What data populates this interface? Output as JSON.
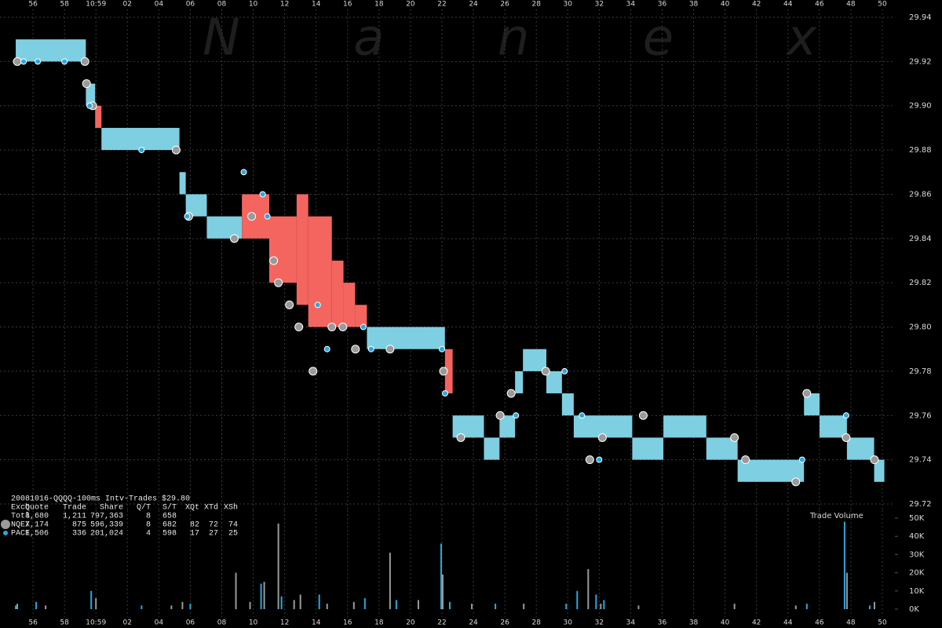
{
  "chart_data": [
    {
      "type": "nbbo",
      "title": "20081016-QQQQ-100ms Intv-Trades $29.80",
      "watermark": "N a n e x",
      "xlim": [
        53.9,
        110.8
      ],
      "xticks": [
        56,
        58,
        {
          "value": 60,
          "label": "10:59"
        },
        {
          "value": 62,
          "label": "02"
        },
        {
          "value": 64,
          "label": "04"
        },
        {
          "value": 66,
          "label": "06"
        },
        {
          "value": 68,
          "label": "08"
        },
        {
          "value": 70,
          "label": "10"
        },
        {
          "value": 72,
          "label": "12"
        },
        {
          "value": 74,
          "label": "14"
        },
        {
          "value": 76,
          "label": "16"
        },
        {
          "value": 78,
          "label": "18"
        },
        {
          "value": 80,
          "label": "20"
        },
        {
          "value": 82,
          "label": "22"
        },
        {
          "value": 84,
          "label": "24"
        },
        {
          "value": 86,
          "label": "26"
        },
        {
          "value": 88,
          "label": "28"
        },
        {
          "value": 90,
          "label": "30"
        },
        {
          "value": 92,
          "label": "32"
        },
        {
          "value": 94,
          "label": "34"
        },
        {
          "value": 96,
          "label": "36"
        },
        {
          "value": 98,
          "label": "38"
        },
        {
          "value": 100,
          "label": "40"
        },
        {
          "value": 102,
          "label": "42"
        },
        {
          "value": 104,
          "label": "44"
        },
        {
          "value": 106,
          "label": "46"
        },
        {
          "value": 108,
          "label": "48"
        },
        {
          "value": 110,
          "label": "50"
        }
      ],
      "ylim": [
        29.72,
        29.94
      ],
      "yticks": [
        29.94,
        29.92,
        {
          "value": 29.9,
          "label": "29.90"
        },
        29.88,
        29.86,
        29.84,
        29.82,
        {
          "value": 29.8,
          "label": "29.80"
        },
        29.78,
        29.76,
        29.74,
        29.72
      ],
      "grid": true,
      "quote_color": "#7ecfe2",
      "crossed_color": "#f4655f",
      "quotes": [
        {
          "x0": 54.9,
          "x1": 59.36,
          "bid": 29.92,
          "ask": 29.93,
          "crossed": false
        },
        {
          "x0": 59.36,
          "x1": 59.95,
          "bid": 29.9,
          "ask": 29.91,
          "crossed": false
        },
        {
          "x0": 59.95,
          "x1": 60.35,
          "bid": 29.89,
          "ask": 29.9,
          "crossed": true
        },
        {
          "x0": 60.35,
          "x1": 65.31,
          "bid": 29.88,
          "ask": 29.89,
          "crossed": false
        },
        {
          "x0": 65.31,
          "x1": 65.71,
          "bid": 29.86,
          "ask": 29.87,
          "crossed": false
        },
        {
          "x0": 65.71,
          "x1": 67.05,
          "bid": 29.85,
          "ask": 29.86,
          "crossed": false
        },
        {
          "x0": 67.05,
          "x1": 69.28,
          "bid": 29.84,
          "ask": 29.85,
          "crossed": false
        },
        {
          "x0": 69.28,
          "x1": 71.02,
          "bid": 29.84,
          "ask": 29.86,
          "crossed": true
        },
        {
          "x0": 71.02,
          "x1": 72.76,
          "bid": 29.82,
          "ask": 29.85,
          "crossed": true
        },
        {
          "x0": 72.76,
          "x1": 73.5,
          "bid": 29.81,
          "ask": 29.86,
          "crossed": true
        },
        {
          "x0": 73.5,
          "x1": 75.0,
          "bid": 29.8,
          "ask": 29.85,
          "crossed": true
        },
        {
          "x0": 75.0,
          "x1": 75.74,
          "bid": 29.8,
          "ask": 29.83,
          "crossed": true
        },
        {
          "x0": 75.74,
          "x1": 76.48,
          "bid": 29.8,
          "ask": 29.82,
          "crossed": true
        },
        {
          "x0": 76.48,
          "x1": 77.23,
          "bid": 29.8,
          "ask": 29.81,
          "crossed": true
        },
        {
          "x0": 77.23,
          "x1": 82.19,
          "bid": 29.79,
          "ask": 29.8,
          "crossed": false
        },
        {
          "x0": 82.19,
          "x1": 82.68,
          "bid": 29.77,
          "ask": 29.79,
          "crossed": true
        },
        {
          "x0": 82.68,
          "x1": 84.67,
          "bid": 29.75,
          "ask": 29.76,
          "crossed": false
        },
        {
          "x0": 84.67,
          "x1": 85.66,
          "bid": 29.74,
          "ask": 29.75,
          "crossed": false
        },
        {
          "x0": 85.66,
          "x1": 86.65,
          "bid": 29.75,
          "ask": 29.76,
          "crossed": false
        },
        {
          "x0": 86.65,
          "x1": 87.15,
          "bid": 29.77,
          "ask": 29.78,
          "crossed": false
        },
        {
          "x0": 87.15,
          "x1": 88.64,
          "bid": 29.78,
          "ask": 29.79,
          "crossed": false
        },
        {
          "x0": 88.64,
          "x1": 89.63,
          "bid": 29.77,
          "ask": 29.78,
          "crossed": false
        },
        {
          "x0": 89.63,
          "x1": 90.38,
          "bid": 29.76,
          "ask": 29.77,
          "crossed": false
        },
        {
          "x0": 90.38,
          "x1": 94.1,
          "bid": 29.75,
          "ask": 29.76,
          "crossed": false
        },
        {
          "x0": 94.1,
          "x1": 96.08,
          "bid": 29.74,
          "ask": 29.75,
          "crossed": false
        },
        {
          "x0": 96.08,
          "x1": 98.81,
          "bid": 29.75,
          "ask": 29.76,
          "crossed": false
        },
        {
          "x0": 98.81,
          "x1": 100.8,
          "bid": 29.74,
          "ask": 29.75,
          "crossed": false
        },
        {
          "x0": 100.8,
          "x1": 105.02,
          "bid": 29.73,
          "ask": 29.74,
          "crossed": false
        },
        {
          "x0": 105.02,
          "x1": 106.01,
          "bid": 29.76,
          "ask": 29.77,
          "crossed": false
        },
        {
          "x0": 106.01,
          "x1": 107.75,
          "bid": 29.75,
          "ask": 29.76,
          "crossed": false
        },
        {
          "x0": 107.75,
          "x1": 109.48,
          "bid": 29.74,
          "ask": 29.75,
          "crossed": false
        },
        {
          "x0": 109.48,
          "x1": 110.13,
          "bid": 29.73,
          "ask": 29.74,
          "crossed": false
        }
      ],
      "stats": {
        "header": [
          "Exch",
          "Quote",
          "Trade",
          "Share",
          "Q/T",
          "S/T",
          "XQt",
          "XTd",
          "XSh"
        ],
        "total": [
          "Totl",
          "8,680",
          "1,211",
          "797,363",
          "8",
          "658"
        ]
      },
      "series": [
        {
          "name": "NQEX",
          "color": "#9a9a9a",
          "marker_size": 5,
          "stats": [
            "7,174",
            "875",
            "596,339",
            "8",
            "682",
            "82",
            "72",
            "74"
          ],
          "x": [
            55.0,
            59.3,
            59.4,
            59.8,
            65.1,
            65.9,
            68.8,
            69.9,
            71.3,
            71.6,
            72.3,
            72.9,
            73.8,
            75.0,
            75.7,
            76.5,
            78.7,
            82.1,
            83.2,
            85.7,
            86.4,
            88.6,
            91.4,
            92.2,
            94.8,
            100.6,
            101.3,
            104.5,
            105.2,
            107.7,
            109.5
          ],
          "values": [
            29.92,
            29.92,
            29.91,
            29.9,
            29.88,
            29.85,
            29.84,
            29.85,
            29.83,
            29.82,
            29.81,
            29.8,
            29.78,
            29.8,
            29.8,
            29.79,
            29.79,
            29.78,
            29.75,
            29.76,
            29.77,
            29.78,
            29.74,
            29.75,
            29.76,
            29.75,
            29.74,
            29.73,
            29.77,
            29.75,
            29.74
          ]
        },
        {
          "name": "PACF",
          "color": "#2aa8e0",
          "marker_size": 3.5,
          "stats": [
            "1,506",
            "336",
            "201,024",
            "4",
            "598",
            "17",
            "27",
            "25"
          ],
          "x": [
            55.4,
            56.3,
            58.0,
            59.6,
            62.9,
            65.8,
            69.4,
            70.6,
            70.9,
            74.1,
            74.7,
            77.0,
            77.5,
            82.0,
            82.2,
            86.7,
            89.8,
            90.9,
            92.0,
            104.9,
            107.7
          ],
          "values": [
            29.92,
            29.92,
            29.92,
            29.9,
            29.88,
            29.85,
            29.87,
            29.86,
            29.85,
            29.81,
            29.79,
            29.8,
            29.79,
            29.79,
            29.77,
            29.76,
            29.78,
            29.76,
            29.74,
            29.74,
            29.76
          ]
        }
      ]
    },
    {
      "type": "bar",
      "title": "Trade Volume",
      "xlim": [
        53.9,
        110.8
      ],
      "xticks": [
        56,
        58,
        {
          "value": 60,
          "label": "10:59"
        },
        {
          "value": 62,
          "label": "02"
        },
        {
          "value": 64,
          "label": "04"
        },
        {
          "value": 66,
          "label": "06"
        },
        {
          "value": 68,
          "label": "08"
        },
        {
          "value": 70,
          "label": "10"
        },
        {
          "value": 72,
          "label": "12"
        },
        {
          "value": 74,
          "label": "14"
        },
        {
          "value": 76,
          "label": "16"
        },
        {
          "value": 78,
          "label": "18"
        },
        {
          "value": 80,
          "label": "20"
        },
        {
          "value": 82,
          "label": "22"
        },
        {
          "value": 84,
          "label": "24"
        },
        {
          "value": 86,
          "label": "26"
        },
        {
          "value": 88,
          "label": "28"
        },
        {
          "value": 90,
          "label": "30"
        },
        {
          "value": 92,
          "label": "32"
        },
        {
          "value": 94,
          "label": "34"
        },
        {
          "value": 96,
          "label": "36"
        },
        {
          "value": 98,
          "label": "38"
        },
        {
          "value": 100,
          "label": "40"
        },
        {
          "value": 102,
          "label": "42"
        },
        {
          "value": 104,
          "label": "44"
        },
        {
          "value": 106,
          "label": "46"
        },
        {
          "value": 108,
          "label": "48"
        },
        {
          "value": 110,
          "label": "50"
        }
      ],
      "ylim": [
        0,
        50000
      ],
      "yticks": [
        {
          "value": 0,
          "label": "0K"
        },
        {
          "value": 10000,
          "label": "10K"
        },
        {
          "value": 20000,
          "label": "20K"
        },
        {
          "value": 30000,
          "label": "30K"
        },
        {
          "value": 40000,
          "label": "40K"
        },
        {
          "value": 50000,
          "label": "50K"
        }
      ],
      "series": [
        {
          "color": "#9a9a9a",
          "x": [
            55.0,
            56.8,
            60.0,
            64.8,
            65.5,
            68.9,
            69.8,
            70.7,
            71.6,
            72.6,
            73.0,
            74.7,
            76.4,
            78.7,
            80.5,
            82.05,
            83.9,
            87.2,
            91.3,
            92.1,
            94.5,
            100.6,
            104.5,
            107.75,
            109.5
          ],
          "values": [
            3000,
            2000,
            6000,
            2000,
            4000,
            20000,
            4000,
            15000,
            47000,
            5000,
            8000,
            3000,
            4000,
            31000,
            5000,
            19000,
            3000,
            3000,
            22000,
            3000,
            2000,
            3000,
            2000,
            20000,
            4000
          ]
        },
        {
          "color": "#2aa8e0",
          "x": [
            54.9,
            56.2,
            59.7,
            62.9,
            66.0,
            70.5,
            71.8,
            74.2,
            77.1,
            79.1,
            81.95,
            82.5,
            85.4,
            89.9,
            90.6,
            91.8,
            92.3,
            105.2,
            107.6,
            109.2
          ],
          "values": [
            2000,
            4000,
            10000,
            2000,
            3000,
            14000,
            7000,
            8000,
            6000,
            5000,
            36000,
            4000,
            3000,
            3000,
            10000,
            8000,
            5000,
            3000,
            48000,
            2000
          ]
        }
      ]
    }
  ]
}
